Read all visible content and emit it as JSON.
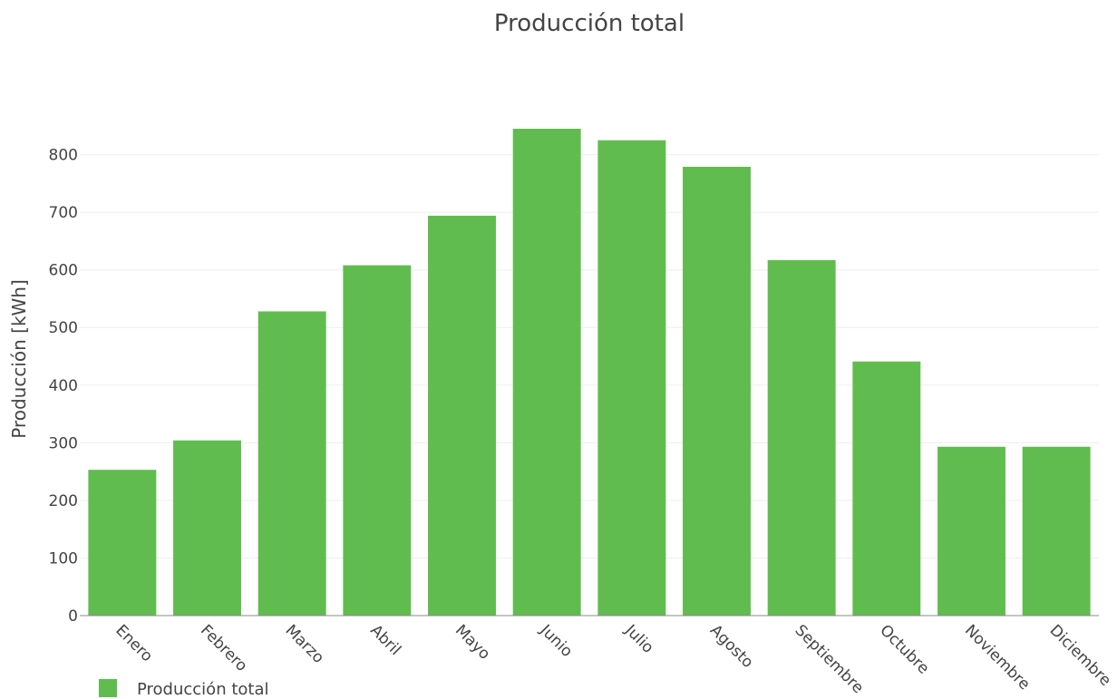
{
  "chart_data": {
    "type": "bar",
    "title": "Producción total",
    "xlabel": "",
    "ylabel": "Producción [kWh]",
    "categories": [
      "Enero",
      "Febrero",
      "Marzo",
      "Abril",
      "Mayo",
      "Junio",
      "Julio",
      "Agosto",
      "Septiembre",
      "Octubre",
      "Noviembre",
      "Diciembre"
    ],
    "series": [
      {
        "name": "Producción total",
        "color": "#61bc4f",
        "values": [
          253,
          304,
          528,
          608,
          694,
          845,
          825,
          779,
          617,
          441,
          293,
          293
        ]
      }
    ],
    "ylim": [
      0,
      845
    ],
    "yticks": [
      0,
      100,
      200,
      300,
      400,
      500,
      600,
      700,
      800
    ],
    "grid": true,
    "legend_position": "bottom-left"
  }
}
